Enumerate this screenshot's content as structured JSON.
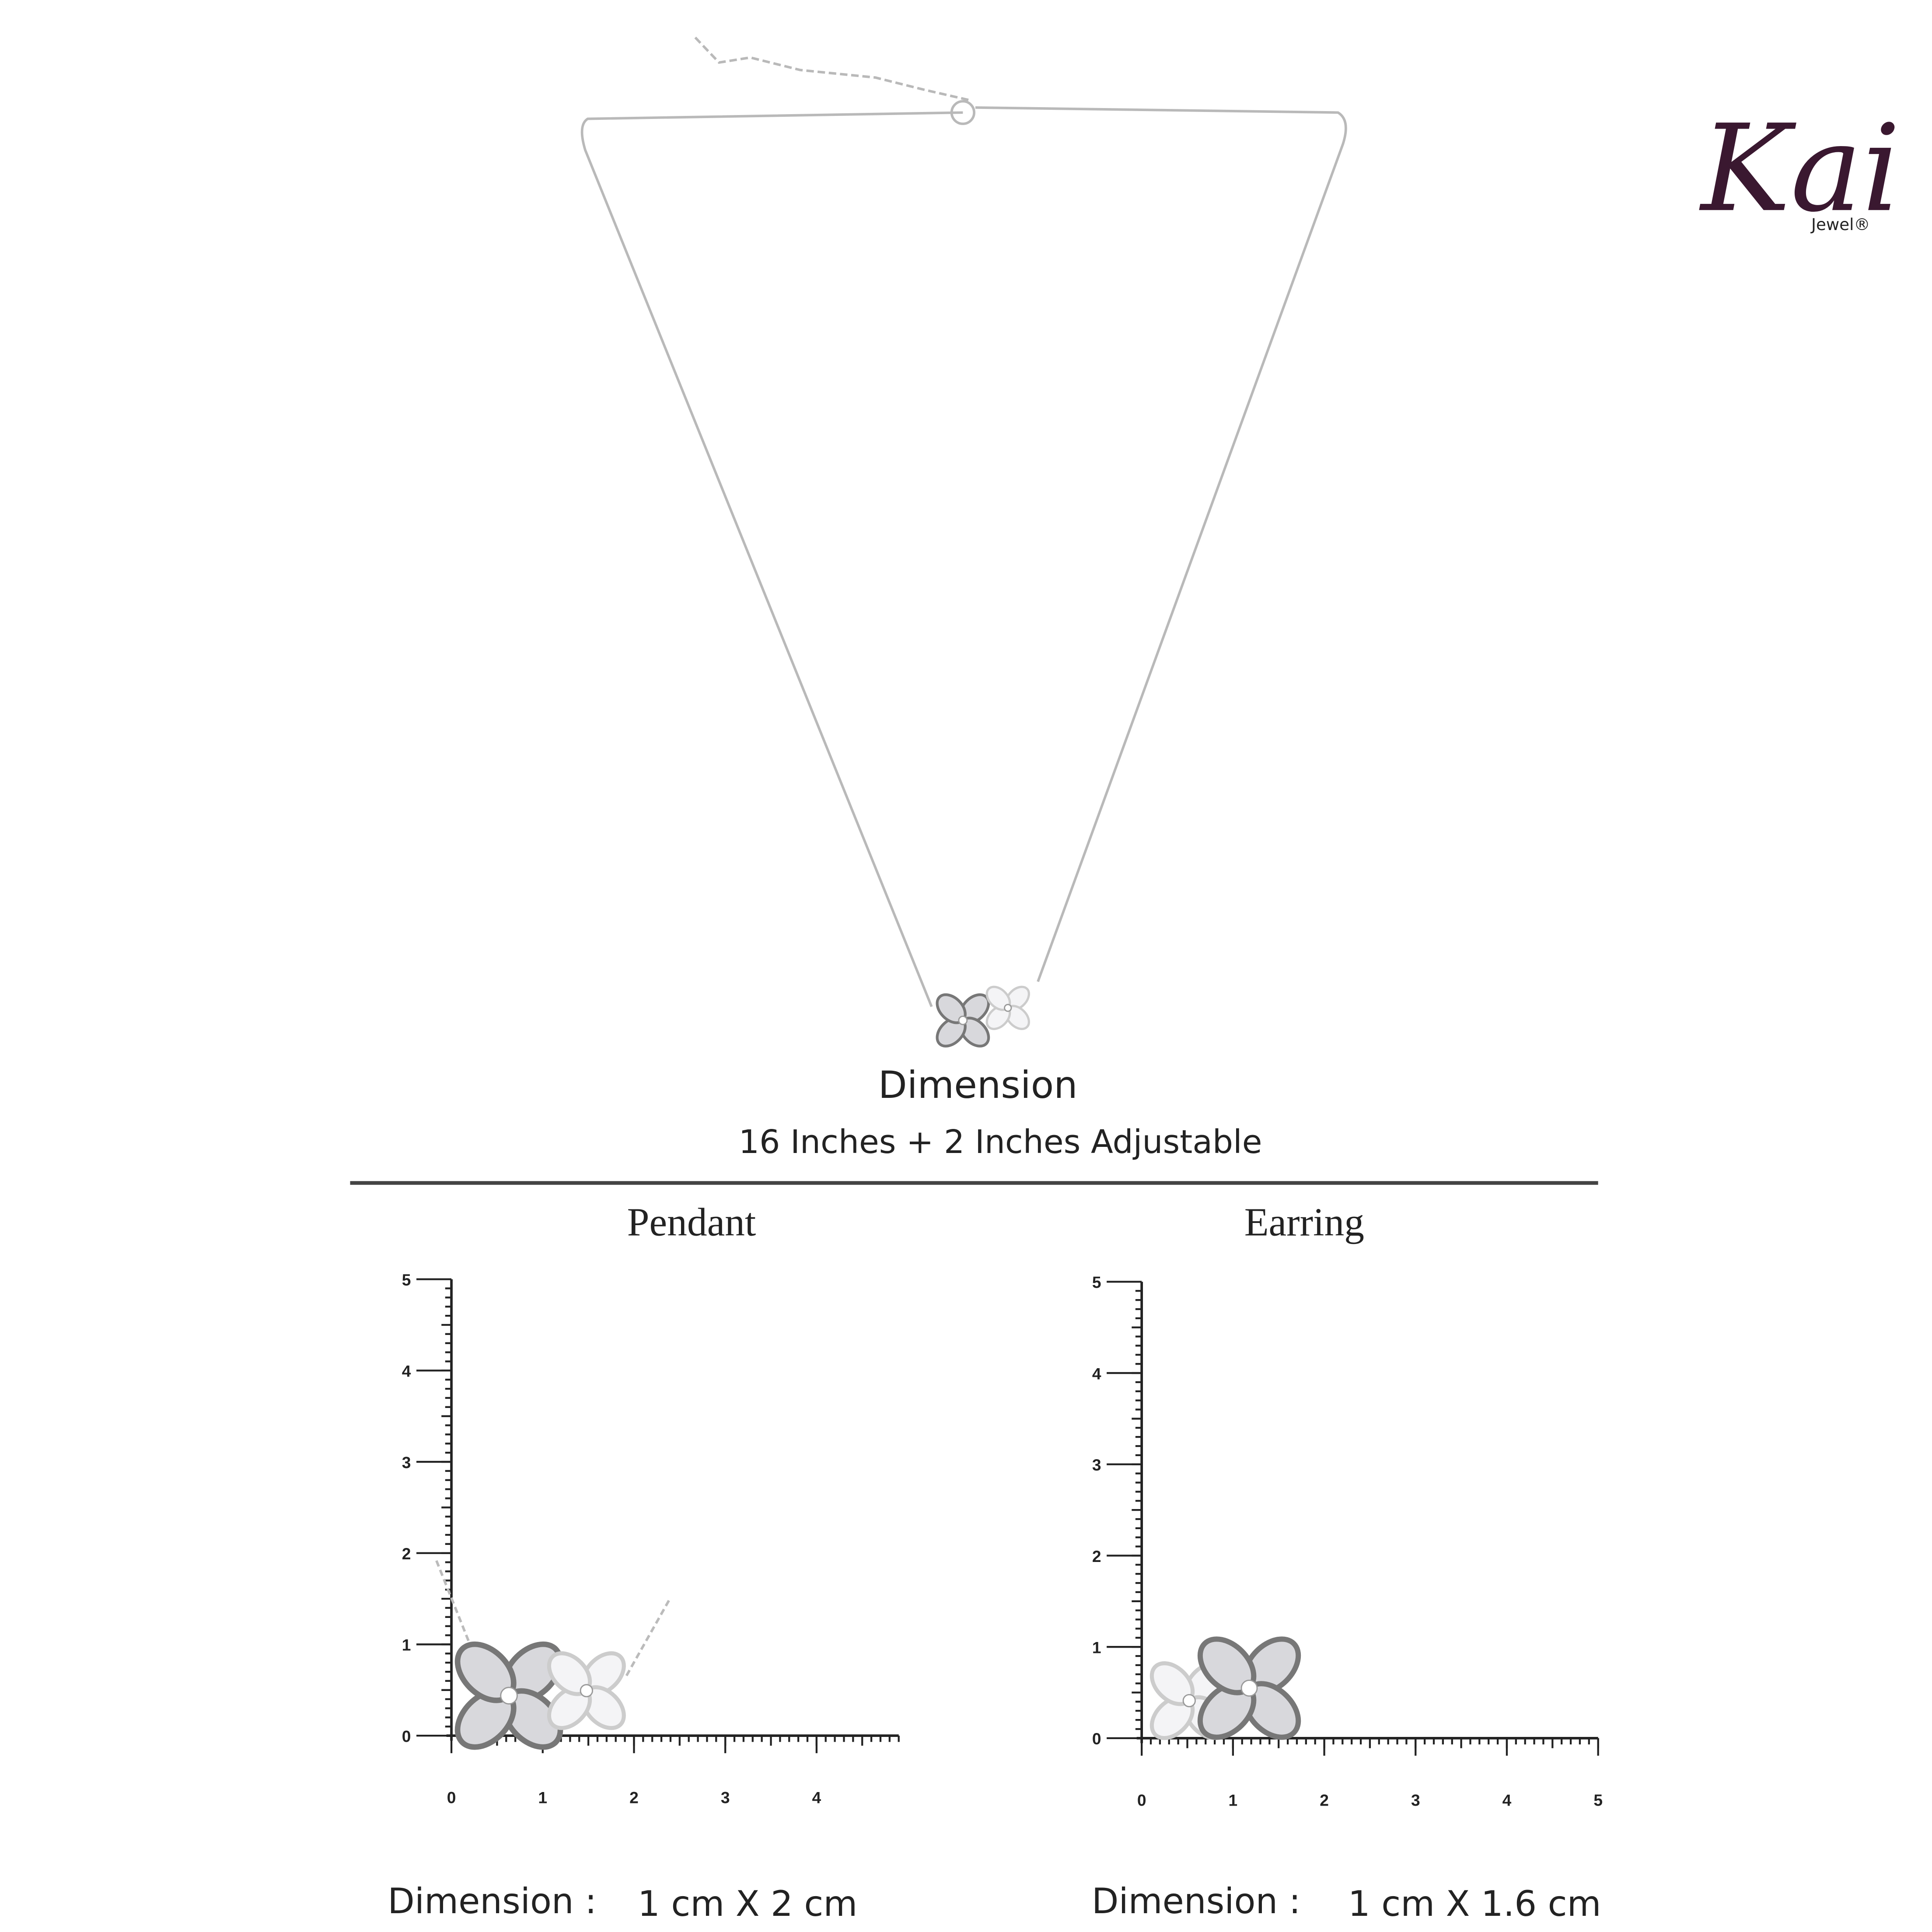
{
  "brand": {
    "name": "Kai",
    "tagline": "Jewel®"
  },
  "dimension": {
    "title": "Dimension",
    "text": "16 Inches + 2 Inches Adjustable"
  },
  "panels": [
    {
      "title": "Pendant",
      "x_ticks": [
        0,
        1,
        2,
        3,
        4
      ],
      "y_ticks": [
        0,
        1,
        2,
        3,
        4,
        5
      ],
      "label": "Dimension :",
      "value": "1 cm X 2 cm"
    },
    {
      "title": "Earring",
      "x_ticks": [
        0,
        1,
        2,
        3,
        4,
        5
      ],
      "y_ticks": [
        0,
        1,
        2,
        3,
        4,
        5
      ],
      "label": "Dimension :",
      "value": "1 cm X 1.6 cm"
    }
  ]
}
